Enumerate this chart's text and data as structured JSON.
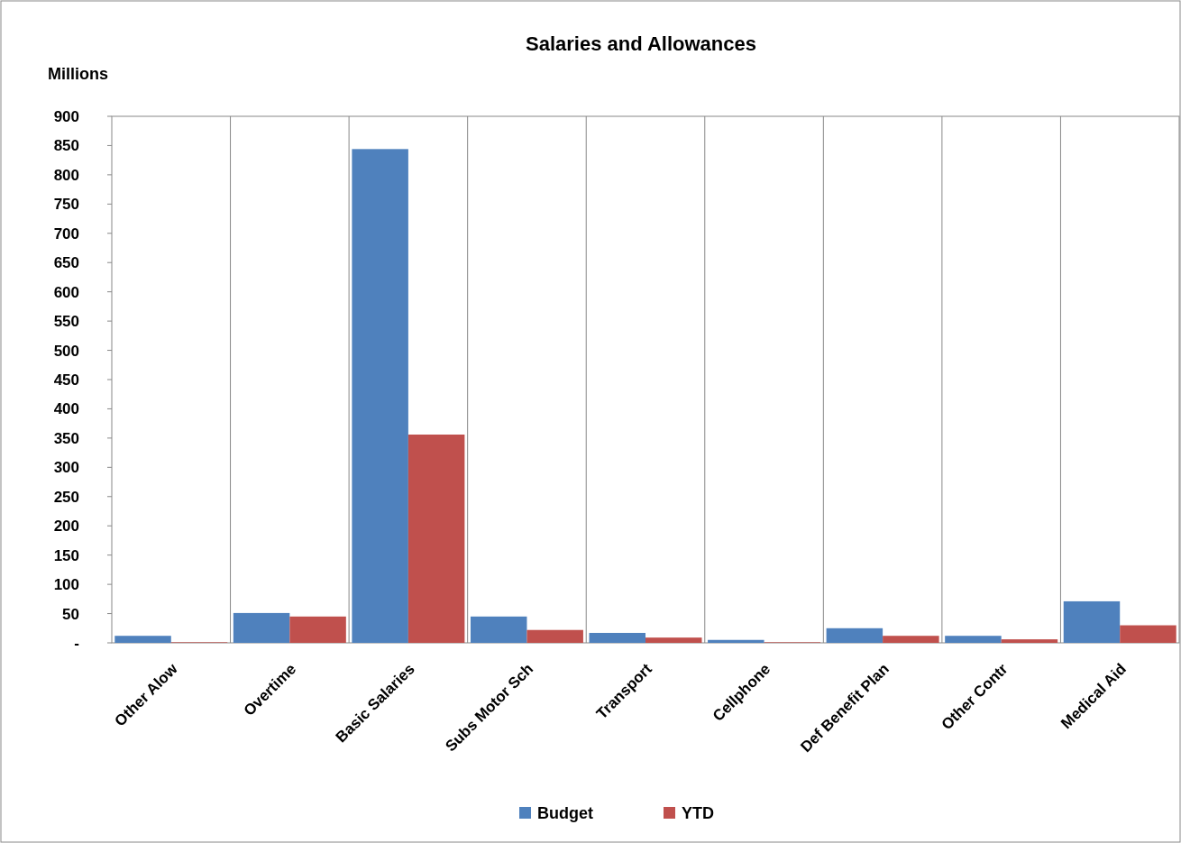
{
  "chart_data": {
    "type": "bar",
    "title": "Salaries and Allowances",
    "ylabel": "Millions",
    "categories": [
      "Other Alow",
      "Overtime",
      "Basic Salaries",
      "Subs Motor Sch",
      "Transport",
      "Cellphone",
      "Def Benefit Plan",
      "Other Contr",
      "Medical Aid"
    ],
    "series": [
      {
        "name": "Budget",
        "color": "#4f81bd",
        "values": [
          12,
          51,
          844,
          45,
          17,
          5,
          25,
          12,
          71
        ]
      },
      {
        "name": "YTD",
        "color": "#c0504d",
        "values": [
          1,
          45,
          356,
          22,
          9,
          1,
          12,
          6,
          30
        ]
      }
    ],
    "ylim": [
      0,
      900
    ],
    "yticks": [
      {
        "value": 0,
        "label": "-"
      },
      50,
      100,
      150,
      200,
      250,
      300,
      350,
      400,
      450,
      500,
      550,
      600,
      650,
      700,
      750,
      800,
      850,
      900
    ],
    "grid": "x",
    "legend": "bottom"
  }
}
